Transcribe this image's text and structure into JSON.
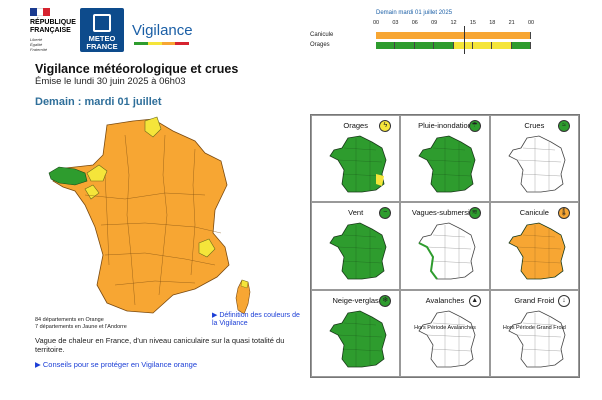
{
  "header": {
    "republic_lines": [
      "RÉPUBLIQUE",
      "FRANÇAISE"
    ],
    "motto_lines": [
      "Liberté",
      "Égalité",
      "Fraternité"
    ],
    "meteo_lines": [
      "METEO",
      "FRANCE"
    ],
    "vigilance_logo": "Vigilance"
  },
  "timeline": {
    "title": "Demain mardi 01 juillet 2025",
    "ticks": [
      "00",
      "03",
      "06",
      "09",
      "12",
      "15",
      "18",
      "21",
      "00"
    ],
    "rows": [
      {
        "label": "Canicule",
        "levels": [
          "orange"
        ]
      },
      {
        "label": "Orages",
        "levels": [
          "green",
          "green",
          "green",
          "green",
          "yellow",
          "yellow",
          "yellow",
          "green"
        ]
      }
    ]
  },
  "page": {
    "title": "Vigilance météorologique et crues",
    "emitted": "Émise le lundi 30 juin 2025 à 06h03",
    "tomorrow": "Demain : mardi 01 juillet",
    "count_orange": "84 départements en Orange",
    "count_yellow": "7 départements en Jaune et l'Andorre",
    "legend_link": "Définition des couleurs de la Vigilance",
    "description": "Vague de chaleur en France, d'un niveau caniculaire sur la quasi totalité du territoire.",
    "advice_link": "Conseils pour se protéger en Vigilance orange"
  },
  "colors": {
    "orange": "#f7a633",
    "yellow": "#f5e53a",
    "green": "#2e9c2e",
    "white": "#ffffff",
    "link": "#1b3ed6"
  },
  "phenomena": [
    {
      "name": "Orages",
      "icon": "lightning-icon",
      "color": "green",
      "alert": "yellow"
    },
    {
      "name": "Pluie-inondation",
      "icon": "rain-icon",
      "color": "green",
      "alert": "green"
    },
    {
      "name": "Crues",
      "icon": "flood-icon",
      "color": "white",
      "alert": "green"
    },
    {
      "name": "Vent",
      "icon": "wind-icon",
      "color": "green",
      "alert": "green"
    },
    {
      "name": "Vagues-submersion",
      "icon": "wave-icon",
      "color": "white",
      "alert": "green"
    },
    {
      "name": "Canicule",
      "icon": "thermometer-icon",
      "color": "orange",
      "alert": "orange"
    },
    {
      "name": "Neige-verglas",
      "icon": "snowflake-icon",
      "color": "green",
      "alert": "green"
    },
    {
      "name": "Avalanches",
      "icon": "mountain-icon",
      "color": "white",
      "note": "Hors Période Avalanches"
    },
    {
      "name": "Grand Froid",
      "icon": "cold-thermometer-icon",
      "color": "white",
      "note": "Hors Période Grand Froid"
    }
  ]
}
